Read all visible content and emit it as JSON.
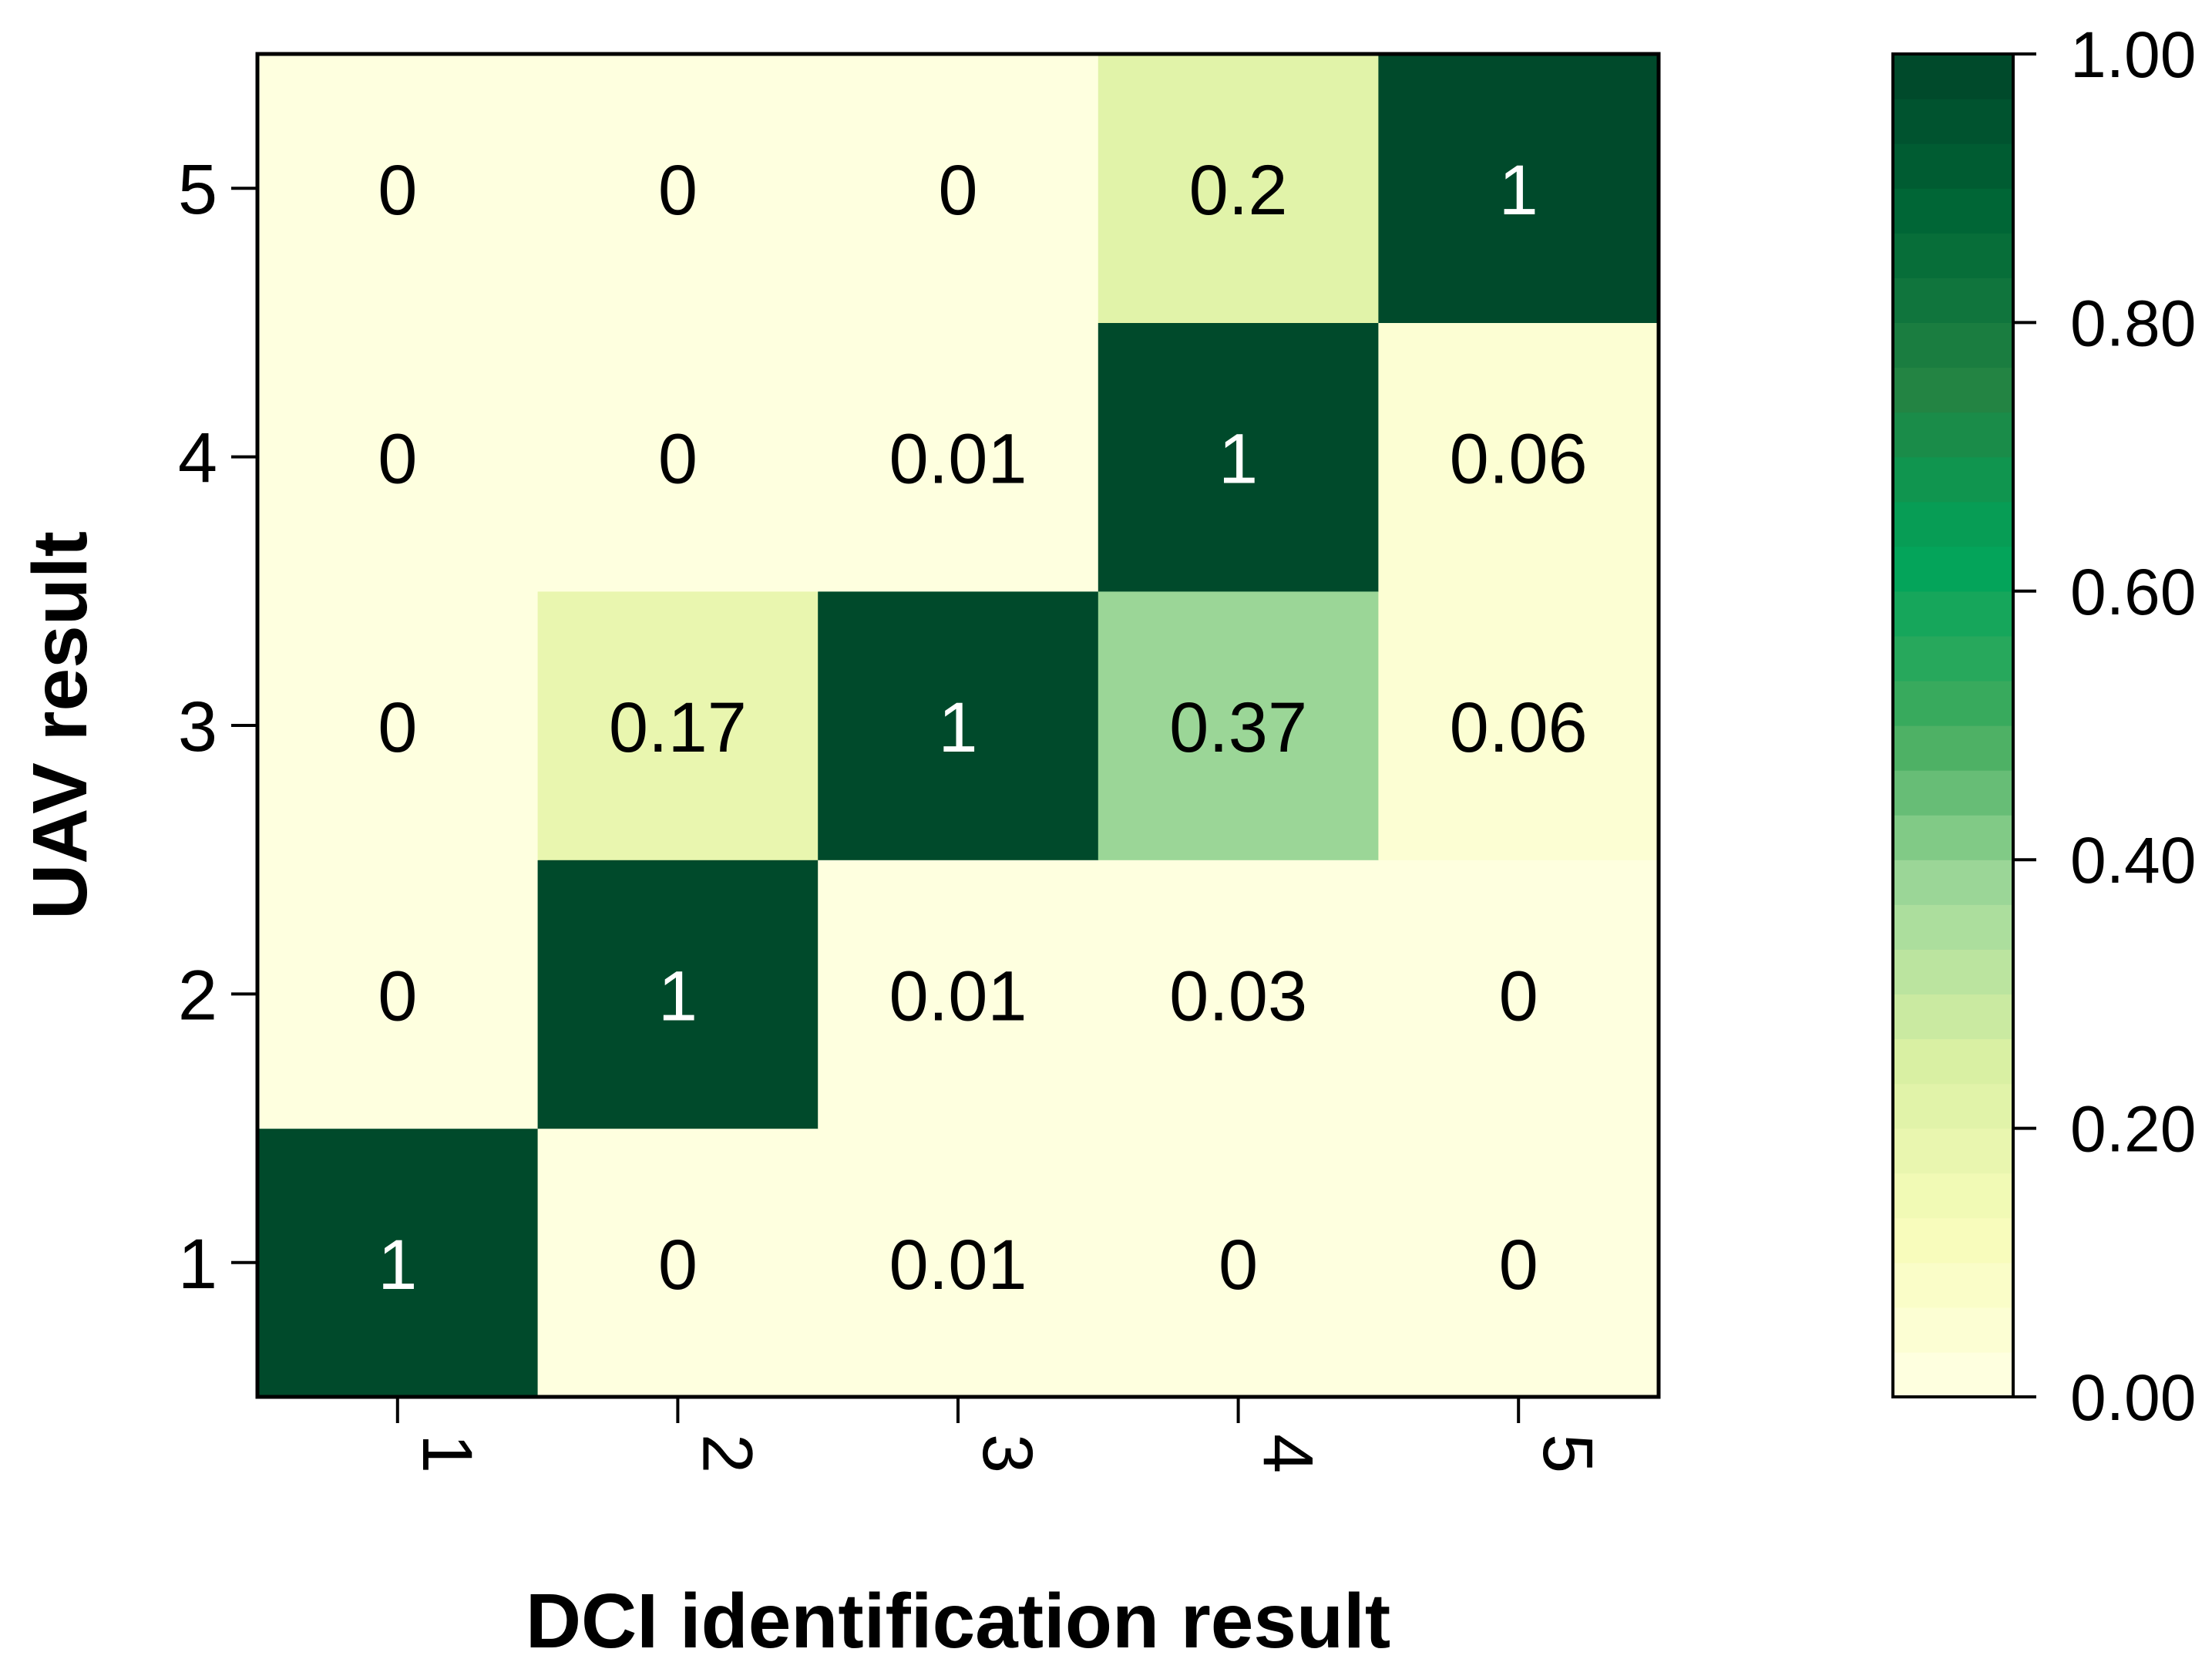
{
  "chart_data": {
    "type": "heatmap",
    "title": "",
    "xlabel": "DCI identification result",
    "ylabel": "UAV result",
    "x_categories": [
      "1",
      "2",
      "3",
      "4",
      "5"
    ],
    "y_categories": [
      "1",
      "2",
      "3",
      "4",
      "5"
    ],
    "values": [
      [
        1,
        0,
        0.01,
        0,
        0
      ],
      [
        0,
        1,
        0.01,
        0.03,
        0
      ],
      [
        0,
        0.17,
        1,
        0.37,
        0.06
      ],
      [
        0,
        0,
        0.01,
        1,
        0.06
      ],
      [
        0,
        0,
        0,
        0.2,
        1
      ]
    ],
    "cell_labels": [
      [
        "1",
        "0",
        "0.01",
        "0",
        "0"
      ],
      [
        "0",
        "1",
        "0.01",
        "0.03",
        "0"
      ],
      [
        "0",
        "0.17",
        "1",
        "0.37",
        "0.06"
      ],
      [
        "0",
        "0",
        "0.01",
        "1",
        "0.06"
      ],
      [
        "0",
        "0",
        "0",
        "0.2",
        "1"
      ]
    ],
    "value_range": [
      0,
      1
    ],
    "colorbar": {
      "ticks": [
        0,
        0.2,
        0.4,
        0.6,
        0.8,
        1.0
      ],
      "tick_labels": [
        "0.00",
        "0.20",
        "0.40",
        "0.60",
        "0.80",
        "1.00"
      ],
      "levels": 30,
      "colors_low_to_high": [
        "#ffffe5",
        "#f7fcb9",
        "#d9f0a3",
        "#a1d99b",
        "#41ab5d",
        "#00a35a",
        "#238443",
        "#006837",
        "#004529"
      ]
    }
  }
}
